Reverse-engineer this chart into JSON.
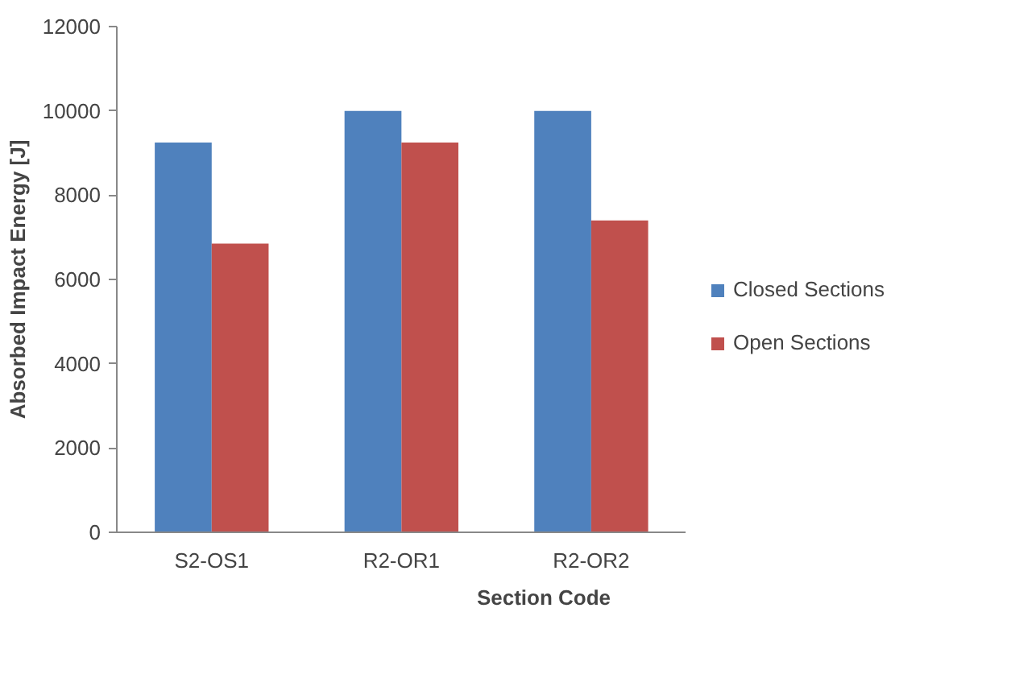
{
  "chart_data": {
    "type": "bar",
    "xlabel": "Section Code",
    "ylabel": "Absorbed Impact Energy [J]",
    "categories": [
      "S2-OS1",
      "R2-OR1",
      "R2-OR2"
    ],
    "series": [
      {
        "name": "Closed Sections",
        "color": "#4f81bd",
        "values": [
          9250,
          10000,
          10000
        ]
      },
      {
        "name": "Open Sections",
        "color": "#c0504d",
        "values": [
          6850,
          9250,
          7400
        ]
      }
    ],
    "ylim": [
      0,
      12000
    ],
    "yticks": [
      0,
      2000,
      4000,
      6000,
      8000,
      10000,
      12000
    ],
    "grid": false,
    "legend": "right"
  }
}
